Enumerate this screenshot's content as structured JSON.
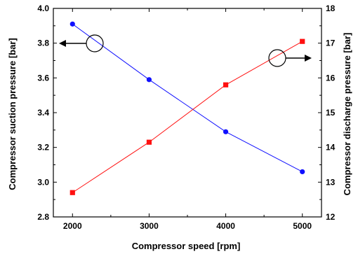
{
  "chart_data": {
    "type": "line",
    "x": [
      2000,
      3000,
      4000,
      5000
    ],
    "xlabel": "Compressor speed [rpm]",
    "xlim": [
      1750,
      5250
    ],
    "xticks": [
      2000,
      3000,
      4000,
      5000
    ],
    "ylabel_left": "Compressor suction pressure [bar]",
    "ylim_left": [
      2.8,
      4.0
    ],
    "yticks_left": [
      "2.8",
      "3.0",
      "3.2",
      "3.4",
      "3.6",
      "3.8",
      "4.0"
    ],
    "ylabel_right": "Compressor discharge pressure [bar]",
    "ylim_right": [
      12,
      18
    ],
    "yticks_right": [
      "12",
      "13",
      "14",
      "15",
      "16",
      "17",
      "18"
    ],
    "grid": false,
    "series": [
      {
        "axis": "left",
        "color": "#1010ff",
        "marker": "circle",
        "values": [
          3.91,
          3.59,
          3.29,
          3.06
        ]
      },
      {
        "axis": "right",
        "color": "#ff1010",
        "marker": "square",
        "values": [
          12.7,
          14.15,
          15.8,
          17.05
        ]
      }
    ],
    "annotations": [
      {
        "type": "circle-arrow",
        "axis": "left",
        "direction": "left"
      },
      {
        "type": "circle-arrow",
        "axis": "right",
        "direction": "right"
      }
    ]
  }
}
